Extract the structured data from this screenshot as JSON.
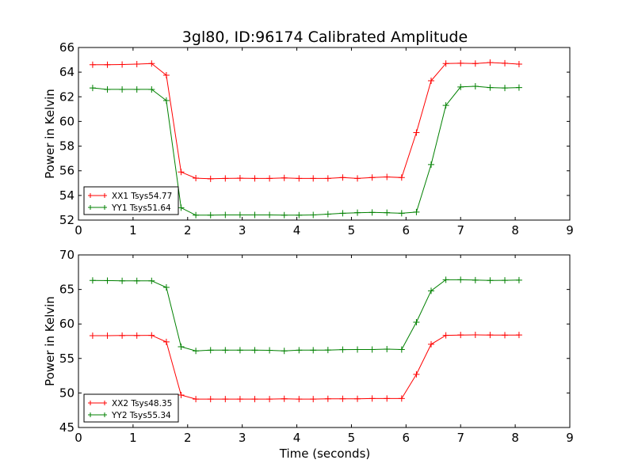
{
  "chart_data": [
    {
      "type": "line",
      "title": "3gl80, ID:96174 Calibrated Amplitude",
      "xlabel": "",
      "ylabel": "Power in Kelvin",
      "xlim": [
        0,
        9
      ],
      "ylim": [
        52,
        66
      ],
      "xticks": [
        "0",
        "1",
        "2",
        "3",
        "4",
        "5",
        "6",
        "7",
        "8",
        "9"
      ],
      "yticks": [
        "52",
        "54",
        "56",
        "58",
        "60",
        "62",
        "64",
        "66"
      ],
      "legend_position": "lower-left",
      "x": [
        0.26,
        0.53,
        0.8,
        1.07,
        1.34,
        1.61,
        1.88,
        2.15,
        2.42,
        2.69,
        2.96,
        3.23,
        3.5,
        3.77,
        4.04,
        4.3,
        4.57,
        4.84,
        5.11,
        5.38,
        5.65,
        5.92,
        6.19,
        6.46,
        6.73,
        7.0,
        7.27,
        7.54,
        7.81,
        8.07
      ],
      "series": [
        {
          "name": "XX1 Tsys54.77",
          "color": "#ff0000",
          "values": [
            64.6,
            64.6,
            64.62,
            64.65,
            64.7,
            63.75,
            55.9,
            55.4,
            55.35,
            55.38,
            55.4,
            55.38,
            55.38,
            55.42,
            55.38,
            55.38,
            55.38,
            55.45,
            55.38,
            55.45,
            55.5,
            55.45,
            59.1,
            63.3,
            64.7,
            64.72,
            64.7,
            64.78,
            64.72,
            64.65
          ]
        },
        {
          "name": "YY1 Tsys51.64",
          "color": "#008000",
          "values": [
            62.72,
            62.6,
            62.6,
            62.6,
            62.6,
            61.7,
            53.0,
            52.4,
            52.4,
            52.42,
            52.42,
            52.42,
            52.42,
            52.4,
            52.4,
            52.42,
            52.48,
            52.55,
            52.6,
            52.62,
            52.6,
            52.55,
            52.65,
            56.5,
            61.3,
            62.8,
            62.85,
            62.75,
            62.72,
            62.75
          ]
        }
      ]
    },
    {
      "type": "line",
      "title": "",
      "xlabel": "Time (seconds)",
      "ylabel": "Power in Kelvin",
      "xlim": [
        0,
        9
      ],
      "ylim": [
        45,
        70
      ],
      "xticks": [
        "0",
        "1",
        "2",
        "3",
        "4",
        "5",
        "6",
        "7",
        "8",
        "9"
      ],
      "yticks": [
        "45",
        "50",
        "55",
        "60",
        "65",
        "70"
      ],
      "legend_position": "lower-left",
      "x": [
        0.26,
        0.53,
        0.8,
        1.07,
        1.34,
        1.61,
        1.88,
        2.15,
        2.42,
        2.69,
        2.96,
        3.23,
        3.5,
        3.77,
        4.04,
        4.3,
        4.57,
        4.84,
        5.11,
        5.38,
        5.65,
        5.92,
        6.19,
        6.46,
        6.73,
        7.0,
        7.27,
        7.54,
        7.81,
        8.07
      ],
      "series": [
        {
          "name": "XX2 Tsys48.35",
          "color": "#ff0000",
          "values": [
            58.3,
            58.3,
            58.32,
            58.32,
            58.35,
            57.4,
            49.7,
            49.12,
            49.12,
            49.12,
            49.12,
            49.12,
            49.12,
            49.15,
            49.12,
            49.12,
            49.15,
            49.15,
            49.15,
            49.2,
            49.2,
            49.2,
            52.7,
            57.05,
            58.35,
            58.4,
            58.42,
            58.4,
            58.38,
            58.4
          ]
        },
        {
          "name": "YY2 Tsys55.34",
          "color": "#008000",
          "values": [
            66.3,
            66.28,
            66.25,
            66.25,
            66.25,
            65.3,
            56.7,
            56.1,
            56.2,
            56.2,
            56.2,
            56.2,
            56.18,
            56.1,
            56.2,
            56.2,
            56.22,
            56.28,
            56.3,
            56.3,
            56.35,
            56.3,
            60.25,
            64.8,
            66.4,
            66.4,
            66.35,
            66.3,
            66.32,
            66.35
          ]
        }
      ]
    }
  ]
}
